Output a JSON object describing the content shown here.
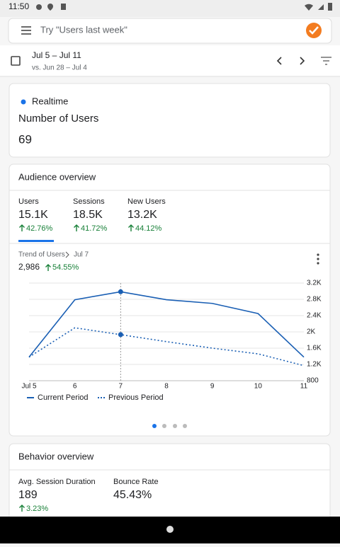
{
  "status_bar": {
    "time": "11:50"
  },
  "search": {
    "placeholder": "Try \"Users last week\""
  },
  "date_range": {
    "current": "Jul 5 – Jul 11",
    "previous": "vs. Jun 28 – Jul 4"
  },
  "realtime": {
    "label": "Realtime",
    "metric": "Number of Users",
    "value": "69"
  },
  "audience": {
    "title": "Audience overview",
    "metrics": [
      {
        "label": "Users",
        "value": "15.1K",
        "change": "42.76%"
      },
      {
        "label": "Sessions",
        "value": "18.5K",
        "change": "41.72%"
      },
      {
        "label": "New Users",
        "value": "13.2K",
        "change": "44.12%"
      }
    ],
    "trend": {
      "label": "Trend of Users",
      "date": "Jul 7",
      "value": "2,986",
      "change": "54.55%"
    }
  },
  "chart_data": {
    "type": "line",
    "categories": [
      "Jul 5",
      "6",
      "7",
      "8",
      "9",
      "10",
      "11"
    ],
    "series": [
      {
        "name": "Current Period",
        "color": "#1a5fb4",
        "line_style": "solid",
        "values": [
          1380,
          2790,
          2986,
          2790,
          2700,
          2450,
          1380
        ]
      },
      {
        "name": "Previous Period",
        "color": "#1a5fb4",
        "line_style": "dotted",
        "values": [
          1380,
          2100,
          1932,
          1760,
          1600,
          1460,
          1170
        ]
      }
    ],
    "ylim": [
      800,
      3200
    ],
    "yticks": [
      800,
      {
        "value": 1200,
        "label": "1.2K"
      },
      {
        "value": 1600,
        "label": "1.6K"
      },
      {
        "value": 2000,
        "label": "2K"
      },
      {
        "value": 2400,
        "label": "2.4K"
      },
      {
        "value": 2800,
        "label": "2.8K"
      },
      {
        "value": 3200,
        "label": "3.2K"
      }
    ],
    "grid": true
  },
  "behavior": {
    "title": "Behavior overview",
    "metrics": [
      {
        "label": "Avg. Session Duration",
        "value": "189",
        "change": "3.23%"
      },
      {
        "label": "Bounce Rate",
        "value": "45.43%"
      }
    ]
  }
}
